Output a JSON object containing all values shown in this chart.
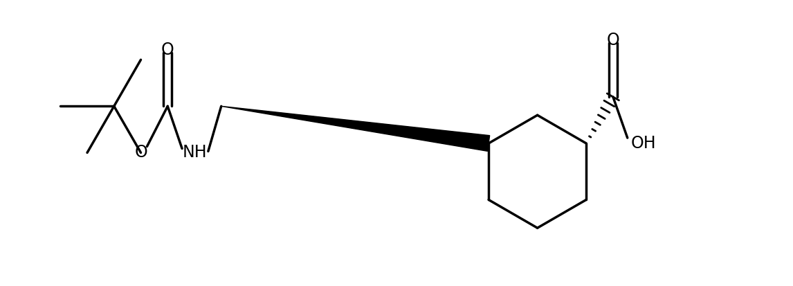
{
  "bg_color": "#ffffff",
  "line_color": "#000000",
  "line_width": 2.5,
  "fig_width": 11.46,
  "fig_height": 4.13,
  "dpi": 100,
  "label_NH": {
    "text": "NH",
    "fontsize": 17
  },
  "label_O_ester": {
    "text": "O",
    "fontsize": 17
  },
  "label_O_carbonyl1": {
    "text": "O",
    "fontsize": 17
  },
  "label_O_carbonyl2": {
    "text": "O",
    "fontsize": 17
  },
  "label_OH": {
    "text": "OH",
    "fontsize": 17
  }
}
